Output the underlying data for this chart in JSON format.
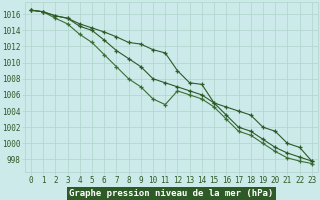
{
  "x": [
    0,
    1,
    2,
    3,
    4,
    5,
    6,
    7,
    8,
    9,
    10,
    11,
    12,
    13,
    14,
    15,
    16,
    17,
    18,
    19,
    20,
    21,
    22,
    23
  ],
  "line_top": [
    1016.5,
    1016.3,
    1015.8,
    1015.5,
    1014.8,
    1014.3,
    1013.8,
    1013.2,
    1012.5,
    1012.3,
    1011.6,
    1011.2,
    1009.0,
    1007.5,
    1007.3,
    1005.0,
    1004.5,
    1004.0,
    1003.5,
    1002.0,
    1001.5,
    1000.0,
    999.5,
    997.8
  ],
  "line_mid": [
    1016.5,
    1016.3,
    1015.8,
    1015.5,
    1014.5,
    1014.0,
    1012.8,
    1011.5,
    1010.5,
    1009.5,
    1008.0,
    1007.5,
    1007.0,
    1006.5,
    1006.0,
    1005.0,
    1003.5,
    1002.0,
    1001.5,
    1000.5,
    999.5,
    998.8,
    998.3,
    997.8
  ],
  "line_bot": [
    1016.5,
    1016.3,
    1015.5,
    1014.8,
    1013.5,
    1012.5,
    1011.0,
    1009.5,
    1008.0,
    1007.0,
    1005.5,
    1004.8,
    1006.5,
    1006.0,
    1005.5,
    1004.5,
    1003.0,
    1001.5,
    1001.0,
    1000.0,
    999.0,
    998.2,
    997.8,
    997.5
  ],
  "ylim_min": 996.5,
  "ylim_max": 1017.5,
  "yticks": [
    998,
    1000,
    1002,
    1004,
    1006,
    1008,
    1010,
    1012,
    1014,
    1016
  ],
  "xlabel": "Graphe pression niveau de la mer (hPa)",
  "bg_color": "#cceaea",
  "grid_color": "#b0d4cc",
  "line_color_dark": "#2d5a27",
  "line_color_mid": "#3a6e32",
  "xlabel_bg": "#2d5a27",
  "xlabel_fg": "#ffffff",
  "tick_color": "#2d5a27",
  "tick_fontsize": 5.5,
  "xlabel_fontsize": 6.5,
  "fig_width": 3.2,
  "fig_height": 2.0,
  "dpi": 100
}
